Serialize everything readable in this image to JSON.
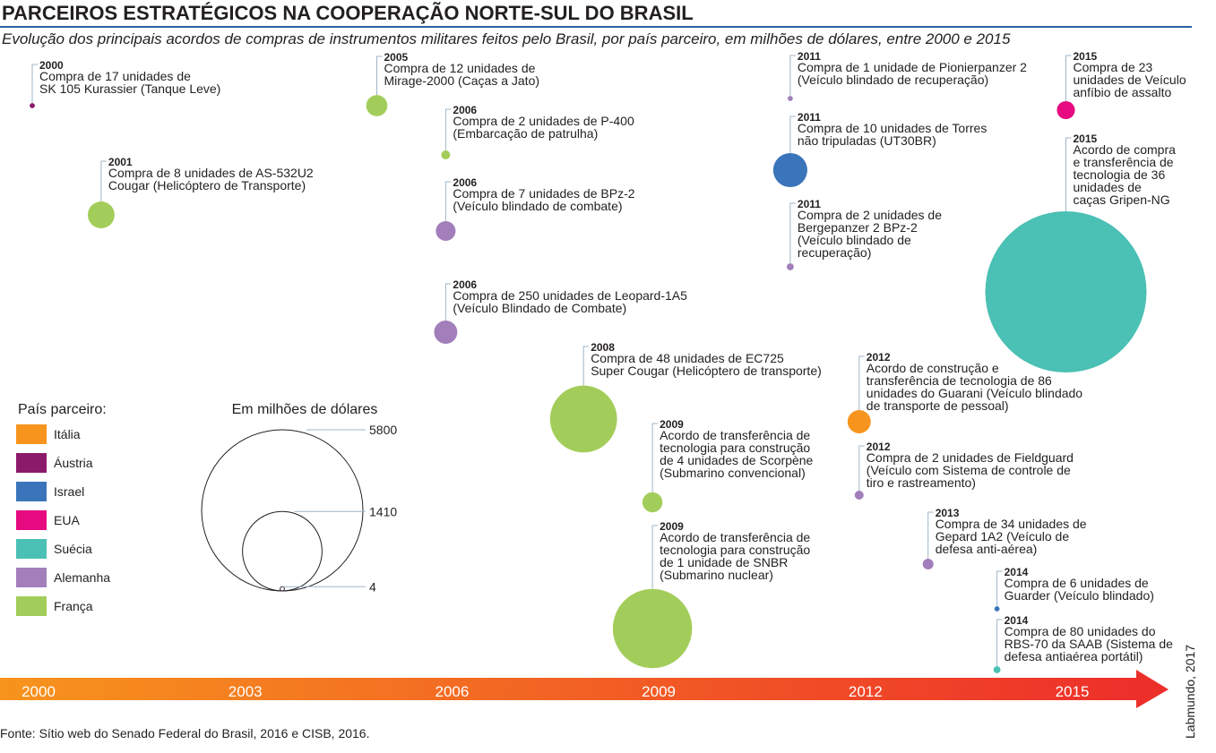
{
  "title": "PARCEIROS ESTRATÉGICOS NA COOPERAÇÃO NORTE-SUL DO BRASIL",
  "subtitle": "Evolução dos principais acordos de compras de instrumentos militares feitos pelo Brasil, por país parceiro, em milhões de dólares, entre 2000 e 2015",
  "legend_title": "País parceiro:",
  "countries": [
    {
      "name": "Itália",
      "color": "#f7941d"
    },
    {
      "name": "Áustria",
      "color": "#8b1a6b"
    },
    {
      "name": "Israel",
      "color": "#3a75bb"
    },
    {
      "name": "EUA",
      "color": "#e6097f"
    },
    {
      "name": "Suécia",
      "color": "#4bc0b4"
    },
    {
      "name": "Alemanha",
      "color": "#a27fbb"
    },
    {
      "name": "França",
      "color": "#a3cd5a"
    }
  ],
  "size_legend": {
    "title": "Em milhões de dólares",
    "values": [
      5800,
      1410,
      4
    ]
  },
  "timeline_years": [
    2000,
    2003,
    2006,
    2009,
    2012,
    2015
  ],
  "items": [
    {
      "year": 2000,
      "country": "Áustria",
      "value": 6,
      "lines": [
        "Compra de 17 unidades de",
        "SK 105 Kurassier (Tanque Leve)"
      ]
    },
    {
      "year": 2001,
      "country": "França",
      "value": 160,
      "lines": [
        "Compra de 8 unidades de AS-532U2",
        "Cougar (Helicóptero de Transporte)"
      ]
    },
    {
      "year": 2005,
      "country": "França",
      "value": 100,
      "lines": [
        "Compra de 12 unidades de",
        "Mirage-2000 (Caças a Jato)"
      ]
    },
    {
      "year": 2006,
      "country": "França",
      "value": 18,
      "lines": [
        "Compra de 2 unidades de P-400",
        "(Embarcação de patrulha)"
      ]
    },
    {
      "year": 2006,
      "country": "Alemanha",
      "value": 87,
      "lines": [
        "Compra de 7 unidades de BPz-2",
        "(Veículo blindado de combate)"
      ]
    },
    {
      "year": 2006,
      "country": "Alemanha",
      "value": 120,
      "lines": [
        "Compra de 250 unidades de Leopard-1A5",
        "(Veículo Blindado de Combate)"
      ]
    },
    {
      "year": 2008,
      "country": "França",
      "value": 1000,
      "lines": [
        "Compra de 48 unidades de EC725",
        "Super Cougar (Helicóptero de transporte)"
      ]
    },
    {
      "year": 2009,
      "country": "França",
      "value": 90,
      "lines": [
        "Acordo de transferência de",
        "tecnologia para construção",
        "de 4 unidades de Scorpène",
        "(Submarino convencional)"
      ]
    },
    {
      "year": 2009,
      "country": "França",
      "value": 1400,
      "lines": [
        "Acordo de transferência de",
        "tecnologia para construção",
        "de 1 unidade de SNBR",
        "(Submarino nuclear)"
      ]
    },
    {
      "year": 2011,
      "country": "Alemanha",
      "value": 6,
      "lines": [
        "Compra de 1 unidade de Pionierpanzer 2",
        "(Veículo blindado de recuperação)"
      ]
    },
    {
      "year": 2011,
      "country": "Israel",
      "value": 260,
      "lines": [
        "Compra de 10 unidades de Torres",
        "não tripuladas (UT30BR)"
      ]
    },
    {
      "year": 2011,
      "country": "Alemanha",
      "value": 11,
      "lines": [
        "Compra de 2 unidades de",
        "Bergepanzer 2 BPz-2",
        "(Veículo blindado de",
        "recuperação)"
      ]
    },
    {
      "year": 2012,
      "country": "Itália",
      "value": 120,
      "lines": [
        "Acordo de construção e",
        "transferência de tecnologia de 86",
        "unidades do Guarani (Veículo blindado",
        "de transporte de pessoal)"
      ]
    },
    {
      "year": 2012,
      "country": "Alemanha",
      "value": 18,
      "lines": [
        "Compra de 2 unidades de Fieldguard",
        "(Veículo com Sistema de controle de",
        "tiro e rastreamento)"
      ]
    },
    {
      "year": 2013,
      "country": "Alemanha",
      "value": 26,
      "lines": [
        "Compra de 34 unidades de",
        "Gepard 1A2 (Veículo de",
        "defesa anti-aérea)"
      ]
    },
    {
      "year": 2014,
      "country": "Israel",
      "value": 6,
      "lines": [
        "Compra de 6 unidades de",
        "Guarder (Veículo blindado)"
      ]
    },
    {
      "year": 2014,
      "country": "Suécia",
      "value": 11,
      "lines": [
        "Compra de 80 unidades do",
        "RBS-70 da SAAB (Sistema de",
        "defesa antiaérea portátil)"
      ]
    },
    {
      "year": 2015,
      "country": "EUA",
      "value": 72,
      "lines": [
        "Compra de 23",
        "unidades de Veículo",
        "anfíbio de assalto"
      ]
    },
    {
      "year": 2015,
      "country": "Suécia",
      "value": 5800,
      "lines": [
        "Acordo de compra",
        "e transferência de",
        "tecnologia de 36",
        "unidades de",
        "caças Gripen-NG"
      ]
    }
  ],
  "source": "Fonte: Sítio web do Senado Federal do Brasil, 2016 e CISB, 2016.",
  "credit": "Labmundo, 2017"
}
